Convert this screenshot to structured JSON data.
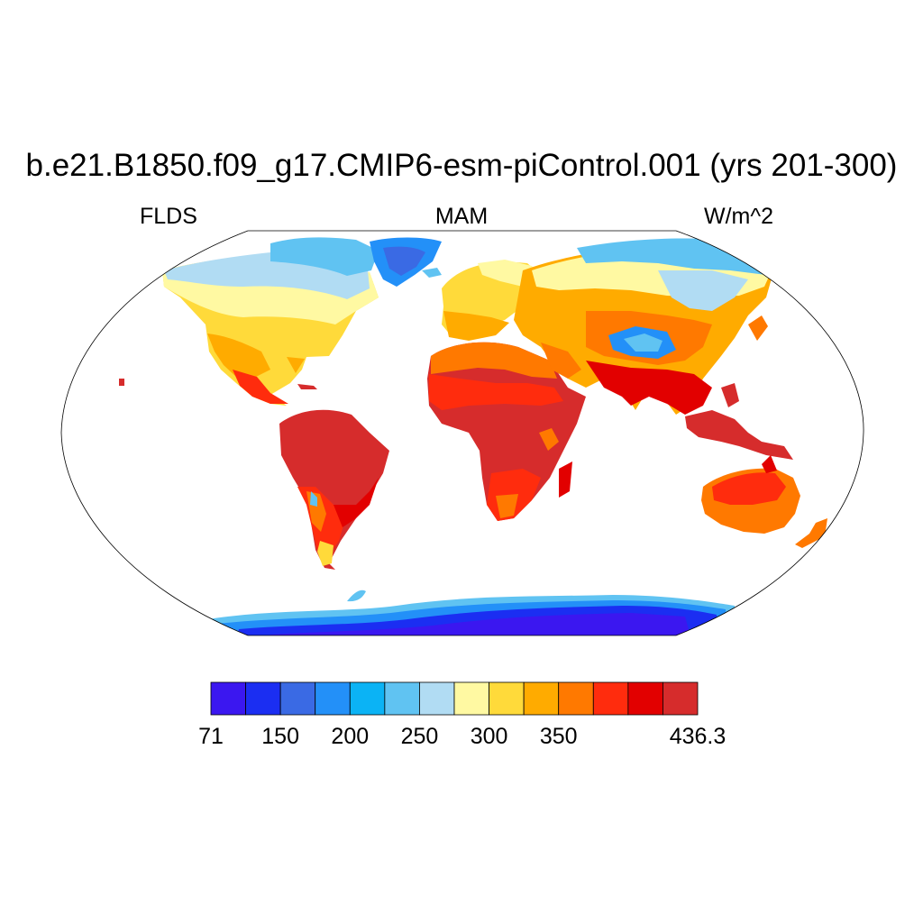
{
  "title": "b.e21.B1850.f09_g17.CMIP6-esm-piControl.001 (yrs 201-300)",
  "variable": "FLDS",
  "season": "MAM",
  "units": "W/m^2",
  "colorbar": {
    "colors": [
      "#3b17f0",
      "#1b2ef2",
      "#3a6ae4",
      "#2390f8",
      "#0bb3f5",
      "#60c3f2",
      "#b1dcf3",
      "#fff9a2",
      "#ffda3a",
      "#ffab00",
      "#ff7900",
      "#ff2c0d",
      "#e20000",
      "#d62c2c"
    ],
    "tick_labels": [
      {
        "value": 71,
        "label": "71"
      },
      {
        "value": 150,
        "label": "150"
      },
      {
        "value": 200,
        "label": "200"
      },
      {
        "value": 250,
        "label": "250"
      },
      {
        "value": 300,
        "label": "300"
      },
      {
        "value": 350,
        "label": "350"
      },
      {
        "value": 436.3,
        "label": "436.3"
      }
    ]
  }
}
